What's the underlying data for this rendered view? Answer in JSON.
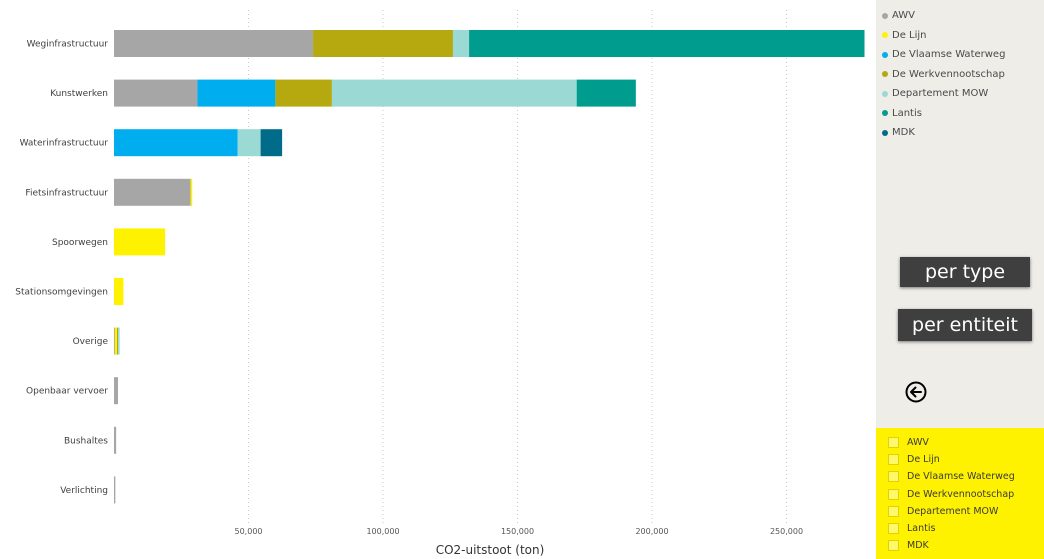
{
  "chart_data": {
    "type": "bar",
    "orientation": "horizontal",
    "stacked": true,
    "xlabel": "CO2-uitstoot (ton)",
    "xlim": [
      0,
      280000
    ],
    "x_ticks": [
      "50,000",
      "100,000",
      "150,000",
      "200,000",
      "250,000"
    ],
    "grid": "vertical dotted",
    "categories": [
      "Weginfrastructuur",
      "Kunstwerken",
      "Waterinfrastructuur",
      "Fietsinfrastructuur",
      "Spoorwegen",
      "Stationsomgevingen",
      "Overige",
      "Openbaar vervoer",
      "Bushaltes",
      "Verlichting"
    ],
    "series": [
      {
        "name": "AWV",
        "color": "#a6a6a6",
        "values": [
          74000,
          31000,
          0,
          28500,
          0,
          0,
          300,
          1500,
          800,
          500
        ]
      },
      {
        "name": "De Lijn",
        "color": "#fff200",
        "values": [
          0,
          0,
          0,
          600,
          19000,
          3500,
          800,
          0,
          0,
          0
        ]
      },
      {
        "name": "De Vlaamse Waterweg",
        "color": "#00aeef",
        "values": [
          0,
          29000,
          46000,
          0,
          0,
          0,
          0,
          0,
          0,
          0
        ]
      },
      {
        "name": "De Werkvennootschap",
        "color": "#b5a90f",
        "values": [
          52000,
          21000,
          0,
          0,
          0,
          0,
          400,
          0,
          0,
          0
        ]
      },
      {
        "name": "Departement MOW",
        "color": "#9bd9d5",
        "values": [
          6000,
          91000,
          8500,
          0,
          0,
          0,
          600,
          0,
          0,
          0
        ]
      },
      {
        "name": "Lantis",
        "color": "#009d8f",
        "values": [
          147000,
          22000,
          0,
          0,
          0,
          0,
          0,
          0,
          0,
          0
        ]
      },
      {
        "name": "MDK",
        "color": "#006c8a",
        "values": [
          0,
          0,
          8000,
          0,
          0,
          0,
          0,
          0,
          0,
          0
        ]
      }
    ]
  },
  "legend": [
    "AWV",
    "De Lijn",
    "De Vlaamse Waterweg",
    "De Werkvennootschap",
    "Departement MOW",
    "Lantis",
    "MDK"
  ],
  "buttons": {
    "per_type": "per type",
    "per_entiteit": "per entiteit"
  },
  "slicer": {
    "items": [
      "AWV",
      "De Lijn",
      "De Vlaamse Waterweg",
      "De Werkvennootschap",
      "Departement MOW",
      "Lantis",
      "MDK"
    ]
  }
}
